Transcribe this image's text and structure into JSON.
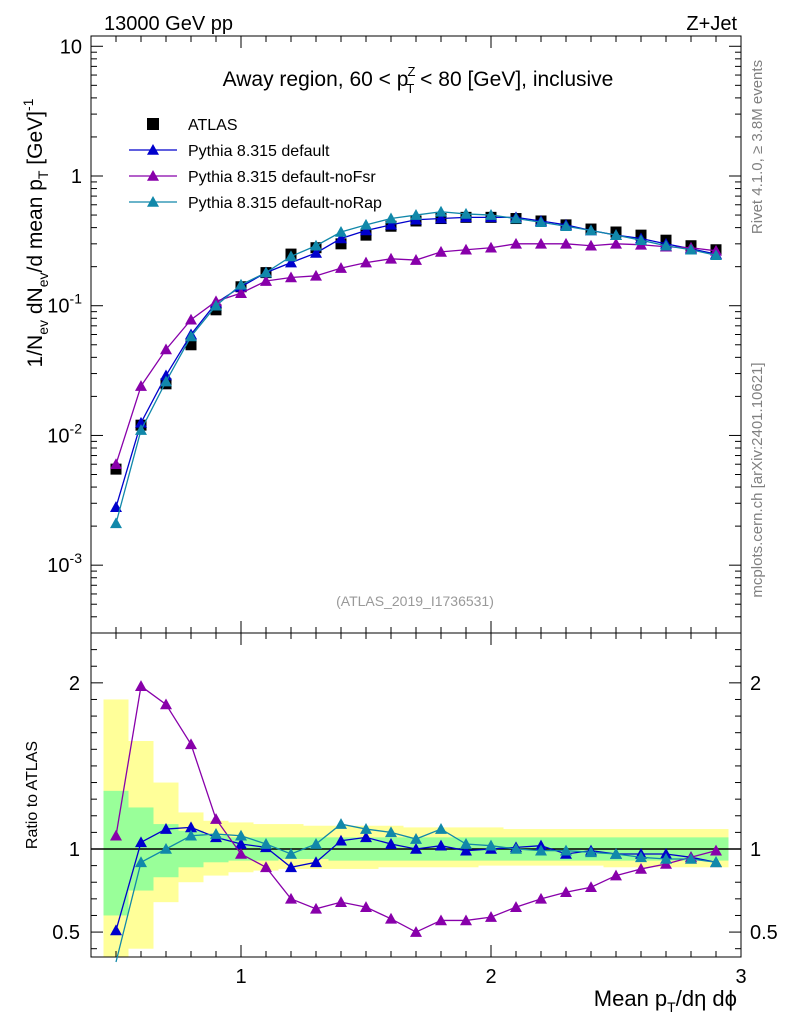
{
  "header": {
    "left": "13000 GeV pp",
    "right": "Z+Jet",
    "source": "(ATLAS_2019_I1736531)",
    "side_top": "Rivet 4.1.0, ≥ 3.8M events",
    "side_bottom": "mcplots.cern.ch [arXiv:2401.10621]"
  },
  "chart_data": [
    {
      "type": "scatter",
      "panel": "main",
      "title": "Away region, 60 < p_T^Z < 80 [GeV], inclusive",
      "xlabel": "Mean p_T/dη dϕ",
      "ylabel": "1/N_ev dN_ev/d mean p_T [GeV]^-1",
      "yscale": "log",
      "xlim": [
        0.4,
        3.0
      ],
      "ylim": [
        0.0003,
        12
      ],
      "xticks": [
        1,
        2,
        3
      ],
      "xticklabels": [
        "1",
        "2",
        "3"
      ],
      "yticks": [
        0.001,
        0.01,
        0.1,
        1,
        10
      ],
      "yticklabels": [
        "10^-3",
        "10^-2",
        "10^-1",
        "1",
        "10"
      ],
      "legend_position": "top-left",
      "x": [
        0.5,
        0.6,
        0.7,
        0.8,
        0.9,
        1.0,
        1.1,
        1.2,
        1.3,
        1.4,
        1.5,
        1.6,
        1.7,
        1.8,
        1.9,
        2.0,
        2.1,
        2.2,
        2.3,
        2.4,
        2.5,
        2.6,
        2.7,
        2.8,
        2.9
      ],
      "series": [
        {
          "name": "ATLAS",
          "color": "#000000",
          "marker": "square",
          "line": false,
          "values": [
            0.0055,
            0.012,
            0.025,
            0.05,
            0.093,
            0.14,
            0.18,
            0.25,
            0.28,
            0.3,
            0.35,
            0.41,
            0.45,
            0.47,
            0.48,
            0.48,
            0.47,
            0.45,
            0.42,
            0.39,
            0.37,
            0.35,
            0.32,
            0.29,
            0.27
          ]
        },
        {
          "name": "Pythia 8.315 default",
          "color": "#0000cc",
          "marker": "triangle",
          "line": true,
          "values": [
            0.0028,
            0.0125,
            0.029,
            0.06,
            0.105,
            0.14,
            0.18,
            0.215,
            0.255,
            0.33,
            0.38,
            0.42,
            0.46,
            0.47,
            0.48,
            0.48,
            0.48,
            0.45,
            0.42,
            0.38,
            0.35,
            0.33,
            0.3,
            0.275,
            0.25
          ]
        },
        {
          "name": "Pythia 8.315 default-noFsr",
          "color": "#8800aa",
          "marker": "triangle",
          "line": true,
          "values": [
            0.006,
            0.024,
            0.046,
            0.078,
            0.108,
            0.125,
            0.155,
            0.165,
            0.17,
            0.195,
            0.215,
            0.23,
            0.225,
            0.26,
            0.27,
            0.28,
            0.3,
            0.3,
            0.3,
            0.29,
            0.3,
            0.295,
            0.285,
            0.28,
            0.265
          ]
        },
        {
          "name": "Pythia 8.315 default-noRap",
          "color": "#1188aa",
          "marker": "triangle",
          "line": true,
          "values": [
            0.0021,
            0.011,
            0.026,
            0.058,
            0.1,
            0.145,
            0.18,
            0.24,
            0.29,
            0.37,
            0.42,
            0.47,
            0.5,
            0.53,
            0.51,
            0.5,
            0.47,
            0.44,
            0.41,
            0.38,
            0.35,
            0.32,
            0.29,
            0.27,
            0.245
          ]
        }
      ]
    },
    {
      "type": "scatter",
      "panel": "ratio",
      "ylabel": "Ratio to ATLAS",
      "xlabel": "Mean p_T/dη dϕ",
      "xlim": [
        0.4,
        3.0
      ],
      "ylim": [
        0.35,
        2.3
      ],
      "yticks": [
        0.5,
        1,
        2
      ],
      "yticklabels": [
        "0.5",
        "1",
        "2"
      ],
      "x": [
        0.5,
        0.6,
        0.7,
        0.8,
        0.9,
        1.0,
        1.1,
        1.2,
        1.3,
        1.4,
        1.5,
        1.6,
        1.7,
        1.8,
        1.9,
        2.0,
        2.1,
        2.2,
        2.3,
        2.4,
        2.5,
        2.6,
        2.7,
        2.8,
        2.9
      ],
      "uncertainty_bands": {
        "stat_green_low": [
          0.6,
          0.75,
          0.83,
          0.89,
          0.92,
          0.93,
          0.93,
          0.94,
          0.94,
          0.93,
          0.93,
          0.93,
          0.93,
          0.93,
          0.93,
          0.93,
          0.93,
          0.93,
          0.93,
          0.93,
          0.93,
          0.93,
          0.93,
          0.93,
          0.93
        ],
        "stat_green_high": [
          1.35,
          1.25,
          1.15,
          1.11,
          1.08,
          1.07,
          1.07,
          1.07,
          1.07,
          1.07,
          1.07,
          1.07,
          1.07,
          1.07,
          1.07,
          1.07,
          1.07,
          1.07,
          1.07,
          1.07,
          1.07,
          1.07,
          1.07,
          1.07,
          1.07
        ],
        "total_yellow_low": [
          0.33,
          0.4,
          0.68,
          0.8,
          0.84,
          0.86,
          0.87,
          0.88,
          0.88,
          0.88,
          0.88,
          0.89,
          0.89,
          0.89,
          0.89,
          0.9,
          0.9,
          0.9,
          0.9,
          0.9,
          0.89,
          0.89,
          0.89,
          0.89,
          0.89
        ],
        "total_yellow_high": [
          1.9,
          1.65,
          1.4,
          1.22,
          1.17,
          1.16,
          1.15,
          1.15,
          1.14,
          1.14,
          1.14,
          1.14,
          1.13,
          1.13,
          1.13,
          1.13,
          1.12,
          1.12,
          1.12,
          1.12,
          1.12,
          1.12,
          1.12,
          1.12,
          1.12
        ]
      },
      "series": [
        {
          "name": "Pythia 8.315 default",
          "color": "#0000cc",
          "values": [
            0.51,
            1.04,
            1.12,
            1.13,
            1.07,
            1.03,
            1.01,
            0.89,
            0.92,
            1.05,
            1.07,
            1.03,
            1.0,
            1.02,
            0.99,
            1.0,
            1.01,
            1.02,
            0.97,
            0.99,
            0.97,
            0.97,
            0.97,
            0.95,
            0.92
          ]
        },
        {
          "name": "Pythia 8.315 default-noFsr",
          "color": "#8800aa",
          "values": [
            1.08,
            1.98,
            1.87,
            1.63,
            1.18,
            0.97,
            0.89,
            0.7,
            0.64,
            0.68,
            0.65,
            0.58,
            0.5,
            0.57,
            0.57,
            0.59,
            0.65,
            0.7,
            0.74,
            0.77,
            0.84,
            0.88,
            0.91,
            0.95,
            0.99
          ]
        },
        {
          "name": "Pythia 8.315 default-noRap",
          "color": "#1188aa",
          "values": [
            0.32,
            0.92,
            1.0,
            1.08,
            1.09,
            1.08,
            1.03,
            0.97,
            1.03,
            1.15,
            1.12,
            1.1,
            1.06,
            1.12,
            1.03,
            1.02,
            1.0,
            0.99,
            0.99,
            0.98,
            0.97,
            0.95,
            0.94,
            0.94,
            0.92
          ]
        }
      ]
    }
  ]
}
